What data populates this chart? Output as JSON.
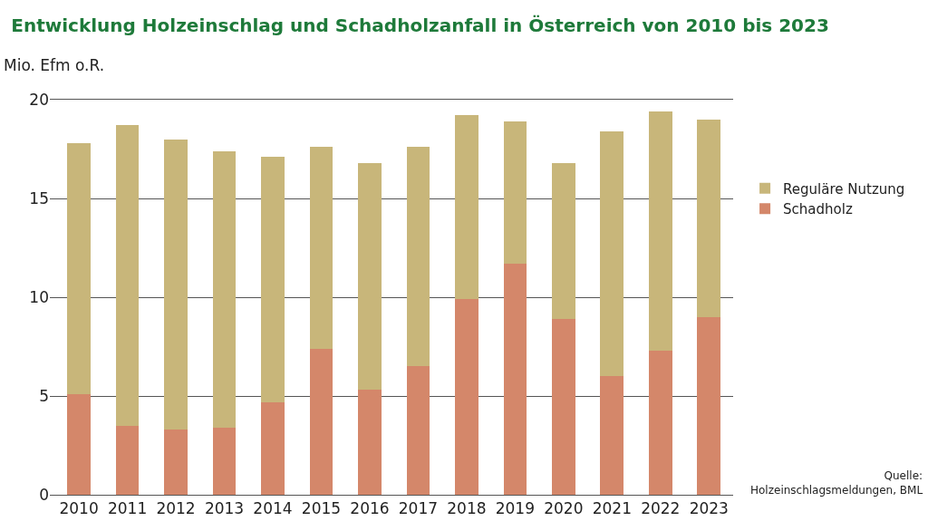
{
  "chart_data": {
    "type": "bar",
    "title": "Entwicklung Holzeinschlag und Schadholzanfall in Österreich von 2010 bis 2023",
    "ylabel": "Mio. Efm o.R.",
    "categories": [
      "2010",
      "2011",
      "2012",
      "2013",
      "2014",
      "2015",
      "2016",
      "2017",
      "2018",
      "2019",
      "2020",
      "2021",
      "2022",
      "2023"
    ],
    "stacked": true,
    "series": [
      {
        "name": "Schadholz",
        "color": "#d4876a",
        "values": [
          5.1,
          3.5,
          3.3,
          3.4,
          4.7,
          7.4,
          5.3,
          6.5,
          9.9,
          11.7,
          8.9,
          6.0,
          7.3,
          9.0
        ]
      },
      {
        "name": "Reguläre Nutzung",
        "color": "#c8b67a",
        "values": [
          12.7,
          15.2,
          14.7,
          14.0,
          12.4,
          10.2,
          11.5,
          11.1,
          9.3,
          7.2,
          7.9,
          12.4,
          12.1,
          10.0
        ]
      }
    ],
    "ylim": [
      0,
      20
    ],
    "yticks": [
      0,
      5,
      10,
      15,
      20
    ],
    "grid": "y",
    "legend": "right",
    "annotations": [
      "Quelle:\nHolzeinschlagsmeldungen, BML"
    ]
  }
}
